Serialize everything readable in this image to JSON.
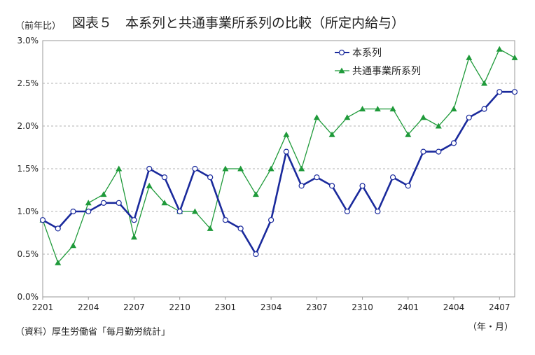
{
  "title": "図表５　本系列と共通事業所系列の比較（所定内給与）",
  "ylabel": "（前年比）",
  "xunit": "（年・月）",
  "source": "（資料）厚生労働省「毎月勤労統計」",
  "chart_data": {
    "type": "line",
    "title": "図表５　本系列と共通事業所系列の比較（所定内給与）",
    "ylabel": "（前年比）",
    "xlabel": "（年・月）",
    "ylim": [
      0,
      3.0
    ],
    "yticks": [
      "0.0%",
      "0.5%",
      "1.0%",
      "1.5%",
      "2.0%",
      "2.5%",
      "3.0%"
    ],
    "ytick_values": [
      0,
      0.5,
      1.0,
      1.5,
      2.0,
      2.5,
      3.0
    ],
    "x": [
      "2201",
      "2202",
      "2203",
      "2204",
      "2205",
      "2206",
      "2207",
      "2208",
      "2209",
      "2210",
      "2211",
      "2212",
      "2301",
      "2302",
      "2303",
      "2304",
      "2305",
      "2306",
      "2307",
      "2308",
      "2309",
      "2310",
      "2311",
      "2312",
      "2401",
      "2402",
      "2403",
      "2404",
      "2405",
      "2406",
      "2407",
      "2408"
    ],
    "xticks": [
      "2201",
      "2204",
      "2207",
      "2210",
      "2301",
      "2304",
      "2307",
      "2310",
      "2401",
      "2404",
      "2407"
    ],
    "grid": true,
    "legend": "top-right",
    "series": [
      {
        "name": "本系列",
        "color": "#1a2a9c",
        "marker": "circle",
        "values": [
          0.9,
          0.8,
          1.0,
          1.0,
          1.1,
          1.1,
          0.9,
          1.5,
          1.4,
          1.0,
          1.5,
          1.4,
          0.9,
          0.8,
          0.5,
          0.9,
          1.7,
          1.3,
          1.4,
          1.3,
          1.0,
          1.3,
          1.0,
          1.4,
          1.3,
          1.7,
          1.7,
          1.8,
          2.1,
          2.2,
          2.4,
          2.4
        ]
      },
      {
        "name": "共通事業所系列",
        "color": "#1f9a3a",
        "marker": "triangle",
        "values": [
          0.9,
          0.4,
          0.6,
          1.1,
          1.2,
          1.5,
          0.7,
          1.3,
          1.1,
          1.0,
          1.0,
          0.8,
          1.5,
          1.5,
          1.2,
          1.5,
          1.9,
          1.5,
          2.1,
          1.9,
          2.1,
          2.2,
          2.2,
          2.2,
          1.9,
          2.1,
          2.0,
          2.2,
          2.8,
          2.5,
          2.9,
          2.8
        ]
      }
    ]
  }
}
